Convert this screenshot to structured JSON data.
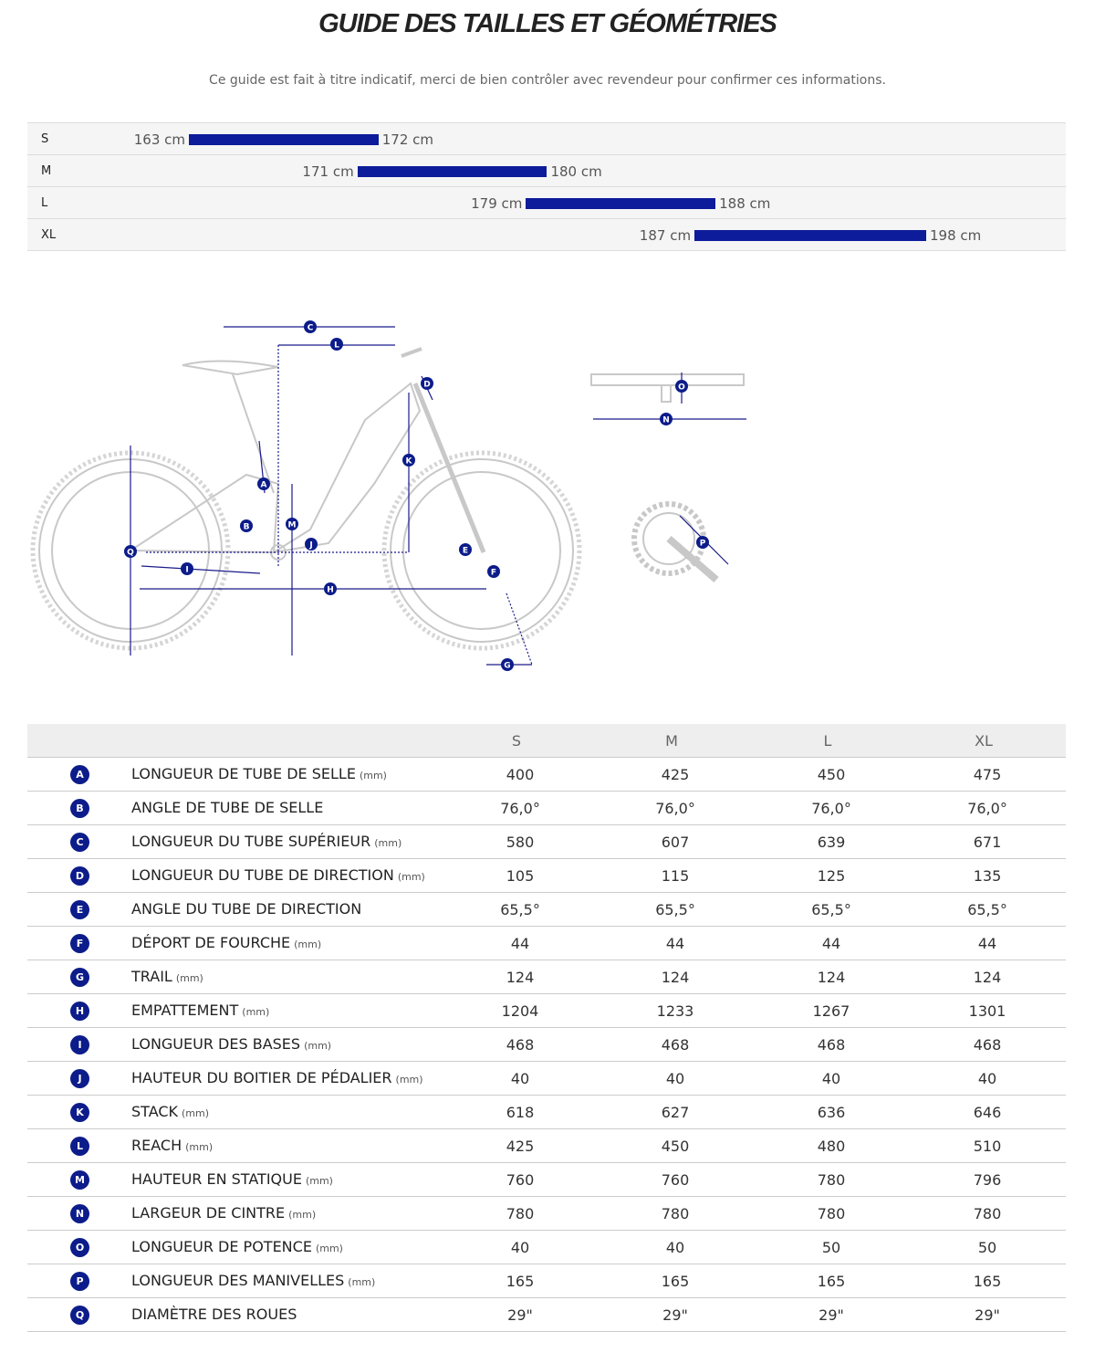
{
  "header": {
    "title": "GUIDE DES TAILLES ET GÉOMÉTRIES",
    "subtitle": "Ce guide est fait à titre indicatif, merci de bien contrôler avec revendeur pour confirmer ces informations."
  },
  "size_chart": {
    "bar_color": "#0c1c9a",
    "rows": [
      {
        "size": "S",
        "min": {
          "value": 163,
          "label": "163 cm"
        },
        "max": {
          "value": 172,
          "label": "172 cm"
        }
      },
      {
        "size": "M",
        "min": {
          "value": 171,
          "label": "171 cm"
        },
        "max": {
          "value": 180,
          "label": "180 cm"
        }
      },
      {
        "size": "L",
        "min": {
          "value": 179,
          "label": "179 cm"
        },
        "max": {
          "value": 188,
          "label": "188 cm"
        }
      },
      {
        "size": "XL",
        "min": {
          "value": 187,
          "label": "187 cm"
        },
        "max": {
          "value": 198,
          "label": "198 cm"
        }
      }
    ]
  },
  "table": {
    "columns": [
      "S",
      "M",
      "L",
      "XL"
    ],
    "rows": [
      {
        "letter": "A",
        "label": "LONGUEUR DE TUBE DE SELLE",
        "unit": "(mm)",
        "values": [
          400,
          425,
          450,
          475
        ]
      },
      {
        "letter": "B",
        "label": "ANGLE DE TUBE DE SELLE",
        "values": [
          "76,0°",
          "76,0°",
          "76,0°",
          "76,0°"
        ]
      },
      {
        "letter": "C",
        "label": "LONGUEUR DU TUBE SUPÉRIEUR",
        "unit": "(mm)",
        "values": [
          580,
          607,
          639,
          671
        ]
      },
      {
        "letter": "D",
        "label": "LONGUEUR DU TUBE DE DIRECTION",
        "unit": "(mm)",
        "values": [
          105,
          115,
          125,
          135
        ]
      },
      {
        "letter": "E",
        "label": "ANGLE DU TUBE DE DIRECTION",
        "values": [
          "65,5°",
          "65,5°",
          "65,5°",
          "65,5°"
        ]
      },
      {
        "letter": "F",
        "label": "DÉPORT DE FOURCHE",
        "unit": "(mm)",
        "values": [
          44,
          44,
          44,
          44
        ]
      },
      {
        "letter": "G",
        "label": "TRAIL",
        "unit": "(mm)",
        "values": [
          124,
          124,
          124,
          124
        ]
      },
      {
        "letter": "H",
        "label": "EMPATTEMENT",
        "unit": "(mm)",
        "values": [
          1204,
          1233,
          1267,
          1301
        ]
      },
      {
        "letter": "I",
        "label": "LONGUEUR DES BASES",
        "unit": "(mm)",
        "values": [
          468,
          468,
          468,
          468
        ]
      },
      {
        "letter": "J",
        "label": "HAUTEUR DU BOITIER DE PÉDALIER",
        "unit": "(mm)",
        "values": [
          40,
          40,
          40,
          40
        ]
      },
      {
        "letter": "K",
        "label": "STACK",
        "unit": "(mm)",
        "values": [
          618,
          627,
          636,
          646
        ]
      },
      {
        "letter": "L",
        "label": "REACH",
        "unit": "(mm)",
        "values": [
          425,
          450,
          480,
          510
        ]
      },
      {
        "letter": "M",
        "label": "HAUTEUR EN STATIQUE",
        "unit": "(mm)",
        "values": [
          760,
          760,
          780,
          796
        ]
      },
      {
        "letter": "N",
        "label": "LARGEUR DE CINTRE",
        "unit": "(mm)",
        "values": [
          780,
          780,
          780,
          780
        ]
      },
      {
        "letter": "O",
        "label": "LONGUEUR DE POTENCE",
        "unit": "(mm)",
        "values": [
          40,
          40,
          50,
          50
        ]
      },
      {
        "letter": "P",
        "label": "LONGUEUR DES MANIVELLES",
        "unit": "(mm)",
        "values": [
          165,
          165,
          165,
          165
        ]
      },
      {
        "letter": "Q",
        "label": "DIAMÈTRE DES ROUES",
        "values": [
          "29\"",
          "29\"",
          "29\"",
          "29\""
        ]
      }
    ]
  }
}
